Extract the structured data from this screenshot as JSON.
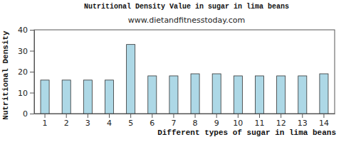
{
  "chart_data": {
    "type": "bar",
    "title": "Nutritional Density Value in sugar in lima beans",
    "subtitle": "www.dietandfitnesstoday.com",
    "x_label": "Different types of sugar in lima beans",
    "y_label": "Nutritional Density",
    "categories": [
      "1",
      "2",
      "3",
      "4",
      "5",
      "6",
      "7",
      "8",
      "9",
      "10",
      "11",
      "12",
      "13",
      "14"
    ],
    "values": [
      16,
      16,
      16,
      16,
      33,
      18,
      18,
      19,
      19,
      18,
      18,
      18,
      18,
      19
    ],
    "color": "#add8e6",
    "ylim": [
      0,
      40
    ],
    "yticks": [
      0,
      10,
      20,
      30,
      40
    ],
    "grid": false
  }
}
